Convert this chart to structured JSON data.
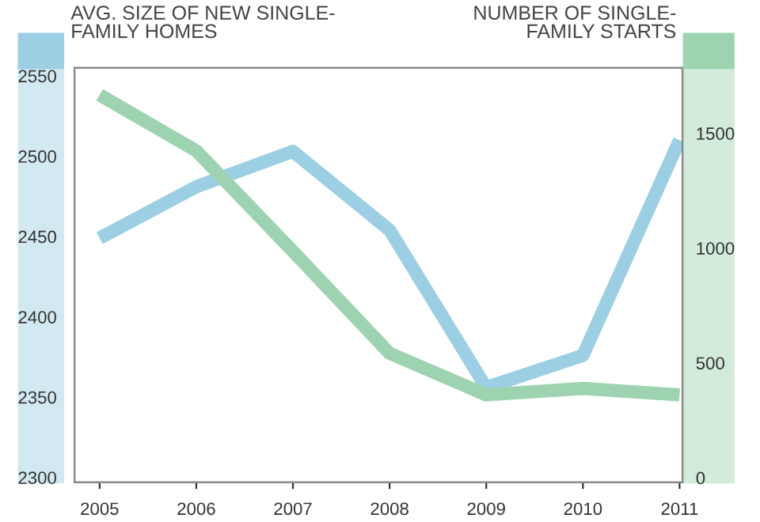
{
  "chart_data": {
    "type": "line",
    "ylabel": "AVG. SIZE OF NEW SINGLE-\nFAMILY HOMES",
    "y2label": "NUMBER OF SINGLE-\nFAMILY STARTS",
    "categories": [
      "2005",
      "2006",
      "2007",
      "2008",
      "2009",
      "2010",
      "2011"
    ],
    "series": [
      {
        "color": "#9ccfe3",
        "values": [
          2449,
          2481,
          2503,
          2454,
          2356,
          2376,
          2510
        ]
      },
      {
        "color": "#9dd3b0",
        "axis": "y2",
        "values": [
          1667,
          1424,
          986,
          542,
          361,
          389,
          361
        ]
      }
    ],
    "ylim": [
      2297,
      2555
    ],
    "yticks": [
      2300,
      2350,
      2400,
      2450,
      2500,
      2550
    ],
    "y2lim": [
      -20,
      1785
    ],
    "y2ticks": [
      0,
      500,
      1000,
      1500
    ],
    "grid": false,
    "legend": false
  }
}
